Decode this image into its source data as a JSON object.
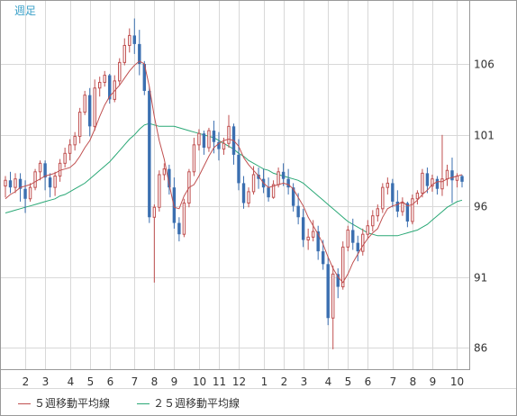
{
  "period_label": "週足",
  "legend": [
    {
      "label": "５週移動平均線",
      "color": "#c05050"
    },
    {
      "label": "２５週移動平均線",
      "color": "#2aa876"
    }
  ],
  "colors": {
    "up": "#c05050",
    "down": "#3b6fb0",
    "grid": "#d8d8d8",
    "frame": "#999999",
    "ma5": "#c05050",
    "ma25": "#2aa876",
    "period": "#3aa0c8"
  },
  "chart_data": {
    "type": "candlestick",
    "ylim": [
      84.5,
      110.5
    ],
    "yticks": [
      86,
      91,
      96,
      101,
      106
    ],
    "xlabels": [
      {
        "label": "2",
        "index": 4
      },
      {
        "label": "3",
        "index": 8
      },
      {
        "label": "4",
        "index": 13
      },
      {
        "label": "5",
        "index": 17
      },
      {
        "label": "6",
        "index": 21
      },
      {
        "label": "7",
        "index": 26
      },
      {
        "label": "8",
        "index": 30
      },
      {
        "label": "9",
        "index": 34
      },
      {
        "label": "10",
        "index": 39
      },
      {
        "label": "11",
        "index": 43
      },
      {
        "label": "12",
        "index": 47
      },
      {
        "label": "1",
        "index": 52
      },
      {
        "label": "2",
        "index": 56
      },
      {
        "label": "3",
        "index": 60
      },
      {
        "label": "4",
        "index": 65
      },
      {
        "label": "5",
        "index": 69
      },
      {
        "label": "6",
        "index": 73
      },
      {
        "label": "7",
        "index": 78
      },
      {
        "label": "8",
        "index": 82
      },
      {
        "label": "9",
        "index": 86
      },
      {
        "label": "10",
        "index": 91
      }
    ],
    "candles": [
      [
        97.4,
        98.1,
        97.8,
        96.6
      ],
      [
        97.8,
        98.4,
        97.3,
        96.9
      ],
      [
        97.3,
        98.3,
        97.9,
        96.9
      ],
      [
        97.9,
        98.3,
        97.2,
        96.3
      ],
      [
        97.2,
        97.8,
        96.5,
        95.5
      ],
      [
        96.5,
        97.6,
        97.3,
        96.3
      ],
      [
        97.3,
        98.6,
        98.4,
        97.1
      ],
      [
        98.4,
        99.2,
        99.0,
        97.8
      ],
      [
        99.0,
        99.2,
        98.0,
        97.1
      ],
      [
        98.0,
        98.3,
        97.3,
        96.6
      ],
      [
        97.3,
        98.4,
        98.1,
        96.7
      ],
      [
        98.1,
        99.3,
        99.0,
        97.7
      ],
      [
        99.0,
        100.1,
        99.7,
        98.7
      ],
      [
        99.7,
        100.7,
        100.3,
        99.2
      ],
      [
        100.3,
        101.2,
        100.9,
        99.9
      ],
      [
        100.9,
        102.9,
        102.6,
        100.4
      ],
      [
        102.6,
        104.1,
        103.8,
        102.4
      ],
      [
        103.8,
        104.3,
        101.6,
        100.9
      ],
      [
        101.6,
        104.9,
        104.3,
        101.3
      ],
      [
        104.3,
        105.1,
        104.7,
        103.7
      ],
      [
        104.7,
        105.5,
        105.2,
        104.4
      ],
      [
        105.2,
        105.3,
        103.5,
        103.2
      ],
      [
        103.5,
        105.2,
        104.8,
        103.3
      ],
      [
        104.8,
        106.4,
        106.1,
        104.5
      ],
      [
        106.1,
        107.8,
        107.3,
        105.9
      ],
      [
        107.3,
        108.5,
        108.0,
        106.8
      ],
      [
        108.0,
        109.2,
        107.4,
        106.7
      ],
      [
        107.4,
        108.4,
        106.0,
        105.2
      ],
      [
        106.0,
        106.2,
        104.1,
        103.8
      ],
      [
        104.1,
        104.4,
        95.2,
        94.8
      ],
      [
        95.2,
        96.1,
        95.9,
        90.6
      ],
      [
        95.9,
        98.5,
        98.2,
        95.6
      ],
      [
        98.2,
        99.0,
        98.6,
        97.8
      ],
      [
        98.6,
        98.9,
        97.3,
        96.8
      ],
      [
        97.3,
        98.0,
        94.8,
        94.4
      ],
      [
        94.8,
        95.2,
        94.0,
        93.5
      ],
      [
        94.0,
        96.5,
        96.2,
        93.8
      ],
      [
        96.2,
        98.6,
        98.4,
        95.9
      ],
      [
        98.4,
        100.8,
        100.3,
        98.1
      ],
      [
        100.3,
        101.4,
        101.1,
        99.9
      ],
      [
        101.1,
        101.3,
        100.1,
        99.6
      ],
      [
        100.1,
        101.5,
        101.3,
        99.8
      ],
      [
        101.3,
        102.0,
        100.5,
        99.7
      ],
      [
        100.5,
        101.2,
        100.0,
        99.2
      ],
      [
        100.0,
        100.8,
        100.4,
        99.6
      ],
      [
        100.4,
        102.4,
        101.6,
        100.1
      ],
      [
        101.6,
        101.8,
        99.6,
        98.9
      ],
      [
        99.6,
        100.7,
        97.6,
        97.1
      ],
      [
        97.6,
        98.1,
        96.2,
        95.8
      ],
      [
        96.2,
        97.3,
        97.0,
        95.9
      ],
      [
        97.0,
        98.8,
        98.2,
        96.8
      ],
      [
        98.2,
        98.7,
        97.9,
        97.2
      ],
      [
        97.9,
        98.6,
        97.3,
        96.9
      ],
      [
        97.3,
        98.0,
        96.6,
        96.3
      ],
      [
        96.6,
        97.8,
        97.5,
        96.5
      ],
      [
        97.5,
        98.7,
        98.4,
        97.3
      ],
      [
        98.4,
        99.0,
        97.9,
        97.4
      ],
      [
        97.9,
        98.6,
        97.3,
        96.8
      ],
      [
        97.3,
        97.6,
        96.0,
        95.6
      ],
      [
        96.0,
        96.9,
        95.2,
        94.7
      ],
      [
        95.2,
        95.8,
        93.6,
        93.1
      ],
      [
        93.6,
        94.4,
        93.8,
        92.9
      ],
      [
        93.8,
        95.0,
        94.2,
        93.5
      ],
      [
        94.2,
        94.6,
        92.8,
        92.2
      ],
      [
        92.8,
        93.6,
        91.9,
        91.5
      ],
      [
        91.9,
        92.4,
        88.1,
        87.6
      ],
      [
        88.1,
        91.8,
        91.2,
        85.9
      ],
      [
        91.2,
        91.6,
        90.3,
        89.5
      ],
      [
        90.3,
        93.5,
        93.1,
        90.1
      ],
      [
        93.1,
        94.6,
        94.3,
        92.8
      ],
      [
        94.3,
        95.1,
        93.4,
        92.9
      ],
      [
        93.4,
        93.9,
        92.8,
        92.1
      ],
      [
        92.8,
        94.4,
        94.0,
        92.5
      ],
      [
        94.0,
        95.0,
        94.6,
        93.7
      ],
      [
        94.6,
        95.7,
        95.3,
        94.2
      ],
      [
        95.3,
        96.1,
        95.8,
        94.9
      ],
      [
        95.8,
        97.6,
        97.3,
        95.5
      ],
      [
        97.3,
        98.0,
        97.6,
        96.8
      ],
      [
        97.6,
        97.9,
        96.3,
        95.9
      ],
      [
        96.3,
        97.1,
        95.6,
        95.2
      ],
      [
        95.6,
        96.6,
        96.2,
        95.3
      ],
      [
        96.2,
        96.3,
        94.9,
        94.5
      ],
      [
        94.9,
        96.8,
        96.5,
        94.7
      ],
      [
        96.5,
        97.1,
        96.9,
        96.1
      ],
      [
        96.9,
        98.6,
        98.3,
        96.6
      ],
      [
        98.3,
        98.7,
        97.4,
        96.9
      ],
      [
        97.4,
        98.2,
        97.9,
        97.0
      ],
      [
        97.9,
        98.1,
        97.2,
        96.8
      ],
      [
        97.2,
        101.0,
        97.9,
        96.7
      ],
      [
        97.9,
        98.9,
        98.5,
        97.4
      ],
      [
        98.5,
        99.4,
        97.8,
        96.2
      ],
      [
        97.8,
        98.3,
        98.1,
        97.3
      ],
      [
        98.1,
        98.2,
        97.7,
        97.3
      ]
    ],
    "ma5": [
      96.5,
      96.8,
      97.0,
      97.3,
      97.4,
      97.5,
      97.7,
      97.9,
      98.1,
      98.2,
      98.3,
      98.5,
      98.6,
      98.7,
      99.0,
      99.5,
      100.1,
      100.6,
      101.4,
      102.3,
      103.1,
      103.7,
      104.1,
      104.5,
      105.0,
      105.5,
      105.9,
      106.2,
      106.0,
      104.4,
      102.3,
      100.6,
      99.3,
      97.5,
      95.9,
      95.8,
      96.7,
      97.3,
      97.5,
      98.1,
      98.8,
      99.5,
      100.1,
      100.4,
      100.6,
      100.7,
      100.6,
      100.2,
      99.4,
      98.9,
      98.5,
      98.1,
      97.6,
      97.3,
      97.4,
      97.5,
      97.6,
      97.5,
      97.2,
      96.6,
      96.0,
      95.2,
      94.6,
      94.0,
      93.3,
      92.4,
      91.6,
      91.0,
      90.6,
      91.2,
      92.0,
      92.6,
      93.2,
      93.7,
      94.1,
      94.4,
      95.2,
      95.8,
      96.0,
      96.1,
      96.3,
      96.0,
      96.1,
      96.4,
      96.8,
      97.1,
      97.5,
      97.7,
      97.7,
      97.9,
      98.0,
      98.1,
      98.2
    ],
    "ma25": [
      95.5,
      95.6,
      95.7,
      95.8,
      95.9,
      96.0,
      96.1,
      96.2,
      96.3,
      96.4,
      96.5,
      96.7,
      96.8,
      97.0,
      97.2,
      97.4,
      97.6,
      97.9,
      98.2,
      98.5,
      98.8,
      99.1,
      99.5,
      99.9,
      100.3,
      100.7,
      101.0,
      101.4,
      101.7,
      101.8,
      101.7,
      101.6,
      101.6,
      101.6,
      101.6,
      101.5,
      101.4,
      101.3,
      101.2,
      101.1,
      101.0,
      100.9,
      100.8,
      100.6,
      100.4,
      100.2,
      100.0,
      99.7,
      99.5,
      99.2,
      99.0,
      98.8,
      98.6,
      98.5,
      98.3,
      98.2,
      98.1,
      98.0,
      97.9,
      97.8,
      97.6,
      97.3,
      97.0,
      96.7,
      96.4,
      96.1,
      95.8,
      95.5,
      95.2,
      94.9,
      94.7,
      94.5,
      94.3,
      94.1,
      94.0,
      93.9,
      93.9,
      93.9,
      93.9,
      93.9,
      94.0,
      94.1,
      94.2,
      94.3,
      94.5,
      94.7,
      95.0,
      95.3,
      95.6,
      95.9,
      96.1,
      96.3,
      96.4
    ]
  }
}
